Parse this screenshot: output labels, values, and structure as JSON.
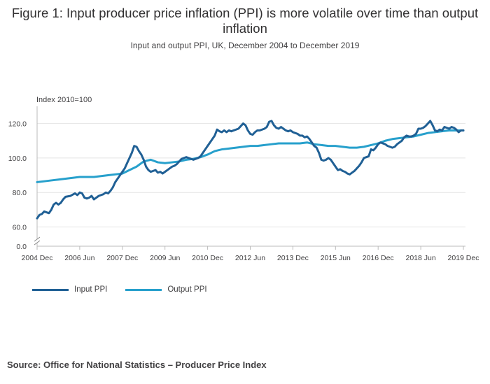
{
  "page": {
    "title": "Figure 1: Input producer price inflation (PPI) is more volatile over time than output inflation",
    "subtitle": "Input and output PPI, UK, December 2004 to December 2019",
    "source": "Source: Office for National Statistics – Producer Price Index"
  },
  "chart_data": {
    "type": "line",
    "ylabel": "Index 2010=100",
    "x_tick_labels": [
      "2004 Dec",
      "2006 Jun",
      "2007 Dec",
      "2009 Jun",
      "2010 Dec",
      "2012 Jun",
      "2013 Dec",
      "2015 Jun",
      "2016 Dec",
      "2018 Jun",
      "2019 Dec"
    ],
    "y_tick_labels": [
      "0.0",
      "60.0",
      "80.0",
      "100.0",
      "120.0"
    ],
    "y_axis_break": true,
    "ylim": [
      0,
      130
    ],
    "grid": true,
    "legend_position": "bottom-left",
    "series": [
      {
        "name": "Input PPI",
        "color": "#206095",
        "points": [
          [
            "2004-12",
            65
          ],
          [
            "2005-01",
            67
          ],
          [
            "2005-02",
            67.5
          ],
          [
            "2005-03",
            69
          ],
          [
            "2005-04",
            68.5
          ],
          [
            "2005-05",
            68
          ],
          [
            "2005-06",
            70
          ],
          [
            "2005-07",
            73
          ],
          [
            "2005-08",
            74
          ],
          [
            "2005-09",
            73
          ],
          [
            "2005-10",
            74
          ],
          [
            "2005-11",
            76
          ],
          [
            "2005-12",
            77.5
          ],
          [
            "2006-02",
            78
          ],
          [
            "2006-04",
            79.5
          ],
          [
            "2006-05",
            78.5
          ],
          [
            "2006-06",
            80
          ],
          [
            "2006-07",
            79.5
          ],
          [
            "2006-08",
            77
          ],
          [
            "2006-09",
            76.5
          ],
          [
            "2006-10",
            77
          ],
          [
            "2006-11",
            78
          ],
          [
            "2006-12",
            76
          ],
          [
            "2007-01",
            77
          ],
          [
            "2007-02",
            78
          ],
          [
            "2007-03",
            78.5
          ],
          [
            "2007-04",
            79
          ],
          [
            "2007-05",
            80
          ],
          [
            "2007-06",
            79.5
          ],
          [
            "2007-07",
            81
          ],
          [
            "2007-08",
            83
          ],
          [
            "2007-09",
            86
          ],
          [
            "2007-10",
            88
          ],
          [
            "2007-11",
            90
          ],
          [
            "2007-12",
            92
          ],
          [
            "2008-01",
            94
          ],
          [
            "2008-02",
            97
          ],
          [
            "2008-03",
            100
          ],
          [
            "2008-04",
            103
          ],
          [
            "2008-05",
            107
          ],
          [
            "2008-06",
            106.5
          ],
          [
            "2008-07",
            104
          ],
          [
            "2008-08",
            102
          ],
          [
            "2008-09",
            99
          ],
          [
            "2008-10",
            95
          ],
          [
            "2008-11",
            93
          ],
          [
            "2008-12",
            92
          ],
          [
            "2009-01",
            92.5
          ],
          [
            "2009-02",
            93
          ],
          [
            "2009-03",
            91.5
          ],
          [
            "2009-04",
            92
          ],
          [
            "2009-05",
            91
          ],
          [
            "2009-06",
            92
          ],
          [
            "2009-07",
            93
          ],
          [
            "2009-08",
            94
          ],
          [
            "2009-09",
            95
          ],
          [
            "2009-10",
            95.5
          ],
          [
            "2009-11",
            96.5
          ],
          [
            "2009-12",
            98
          ],
          [
            "2010-01",
            99.5
          ],
          [
            "2010-02",
            100
          ],
          [
            "2010-03",
            100.5
          ],
          [
            "2010-04",
            100
          ],
          [
            "2010-05",
            99.5
          ],
          [
            "2010-06",
            99
          ],
          [
            "2010-07",
            99.5
          ],
          [
            "2010-08",
            100
          ],
          [
            "2010-09",
            101
          ],
          [
            "2010-10",
            103
          ],
          [
            "2010-11",
            105
          ],
          [
            "2010-12",
            107
          ],
          [
            "2011-01",
            109
          ],
          [
            "2011-02",
            111
          ],
          [
            "2011-03",
            113
          ],
          [
            "2011-04",
            116.5
          ],
          [
            "2011-05",
            115.5
          ],
          [
            "2011-06",
            115
          ],
          [
            "2011-07",
            116
          ],
          [
            "2011-08",
            115
          ],
          [
            "2011-09",
            116
          ],
          [
            "2011-10",
            115.5
          ],
          [
            "2011-11",
            116
          ],
          [
            "2011-12",
            116.5
          ],
          [
            "2012-01",
            117
          ],
          [
            "2012-02",
            118.5
          ],
          [
            "2012-03",
            120
          ],
          [
            "2012-04",
            119
          ],
          [
            "2012-05",
            116
          ],
          [
            "2012-06",
            114
          ],
          [
            "2012-07",
            113.5
          ],
          [
            "2012-08",
            115
          ],
          [
            "2012-09",
            116
          ],
          [
            "2012-10",
            116
          ],
          [
            "2012-11",
            116.5
          ],
          [
            "2012-12",
            117
          ],
          [
            "2013-01",
            118
          ],
          [
            "2013-02",
            121
          ],
          [
            "2013-03",
            121.5
          ],
          [
            "2013-04",
            119
          ],
          [
            "2013-05",
            117.5
          ],
          [
            "2013-06",
            117
          ],
          [
            "2013-07",
            118
          ],
          [
            "2013-08",
            117
          ],
          [
            "2013-09",
            116
          ],
          [
            "2013-10",
            115.5
          ],
          [
            "2013-11",
            116
          ],
          [
            "2013-12",
            115
          ],
          [
            "2014-01",
            114.5
          ],
          [
            "2014-02",
            114
          ],
          [
            "2014-03",
            113
          ],
          [
            "2014-04",
            113
          ],
          [
            "2014-05",
            112
          ],
          [
            "2014-06",
            112.5
          ],
          [
            "2014-07",
            111
          ],
          [
            "2014-08",
            109
          ],
          [
            "2014-09",
            107
          ],
          [
            "2014-10",
            106
          ],
          [
            "2014-11",
            103
          ],
          [
            "2014-12",
            99
          ],
          [
            "2015-01",
            98.5
          ],
          [
            "2015-02",
            99
          ],
          [
            "2015-03",
            100
          ],
          [
            "2015-04",
            99
          ],
          [
            "2015-05",
            97
          ],
          [
            "2015-06",
            95
          ],
          [
            "2015-07",
            93
          ],
          [
            "2015-08",
            93.5
          ],
          [
            "2015-09",
            92.5
          ],
          [
            "2015-10",
            92
          ],
          [
            "2015-11",
            91
          ],
          [
            "2015-12",
            90.5
          ],
          [
            "2016-01",
            91.5
          ],
          [
            "2016-02",
            92.5
          ],
          [
            "2016-03",
            94
          ],
          [
            "2016-04",
            95.5
          ],
          [
            "2016-05",
            97.5
          ],
          [
            "2016-06",
            100
          ],
          [
            "2016-07",
            100.5
          ],
          [
            "2016-08",
            101
          ],
          [
            "2016-09",
            105
          ],
          [
            "2016-10",
            104.5
          ],
          [
            "2016-11",
            106
          ],
          [
            "2016-12",
            108
          ],
          [
            "2017-01",
            109
          ],
          [
            "2017-02",
            108.5
          ],
          [
            "2017-03",
            108
          ],
          [
            "2017-04",
            107
          ],
          [
            "2017-05",
            106.5
          ],
          [
            "2017-06",
            106
          ],
          [
            "2017-07",
            106.5
          ],
          [
            "2017-08",
            108
          ],
          [
            "2017-09",
            109
          ],
          [
            "2017-10",
            110
          ],
          [
            "2017-11",
            112
          ],
          [
            "2017-12",
            113
          ],
          [
            "2018-01",
            112.5
          ],
          [
            "2018-02",
            112.5
          ],
          [
            "2018-03",
            113
          ],
          [
            "2018-04",
            114
          ],
          [
            "2018-05",
            117
          ],
          [
            "2018-06",
            117
          ],
          [
            "2018-07",
            117.5
          ],
          [
            "2018-08",
            118.5
          ],
          [
            "2018-09",
            120
          ],
          [
            "2018-10",
            121.5
          ],
          [
            "2018-11",
            119
          ],
          [
            "2018-12",
            116
          ],
          [
            "2019-01",
            115.5
          ],
          [
            "2019-02",
            116.5
          ],
          [
            "2019-03",
            116
          ],
          [
            "2019-04",
            118
          ],
          [
            "2019-05",
            117.5
          ],
          [
            "2019-06",
            117
          ],
          [
            "2019-07",
            118
          ],
          [
            "2019-08",
            117.5
          ],
          [
            "2019-09",
            116.5
          ],
          [
            "2019-10",
            115
          ],
          [
            "2019-11",
            116
          ],
          [
            "2019-12",
            116
          ]
        ]
      },
      {
        "name": "Output PPI",
        "color": "#27a0cc",
        "points": [
          [
            "2004-12",
            86
          ],
          [
            "2005-03",
            86.5
          ],
          [
            "2005-06",
            87
          ],
          [
            "2005-09",
            87.5
          ],
          [
            "2005-12",
            88
          ],
          [
            "2006-03",
            88.5
          ],
          [
            "2006-06",
            89
          ],
          [
            "2006-09",
            89
          ],
          [
            "2006-12",
            89
          ],
          [
            "2007-03",
            89.5
          ],
          [
            "2007-06",
            90
          ],
          [
            "2007-09",
            90.5
          ],
          [
            "2007-12",
            91
          ],
          [
            "2008-03",
            93
          ],
          [
            "2008-06",
            95
          ],
          [
            "2008-09",
            98
          ],
          [
            "2008-12",
            99
          ],
          [
            "2009-03",
            97.5
          ],
          [
            "2009-06",
            97
          ],
          [
            "2009-09",
            97.5
          ],
          [
            "2009-12",
            98
          ],
          [
            "2010-03",
            99
          ],
          [
            "2010-06",
            99.5
          ],
          [
            "2010-09",
            100.5
          ],
          [
            "2010-12",
            102
          ],
          [
            "2011-03",
            104
          ],
          [
            "2011-06",
            105
          ],
          [
            "2011-09",
            105.5
          ],
          [
            "2011-12",
            106
          ],
          [
            "2012-03",
            106.5
          ],
          [
            "2012-06",
            107
          ],
          [
            "2012-09",
            107
          ],
          [
            "2012-12",
            107.5
          ],
          [
            "2013-03",
            108
          ],
          [
            "2013-06",
            108.5
          ],
          [
            "2013-09",
            108.5
          ],
          [
            "2013-12",
            108.5
          ],
          [
            "2014-03",
            108.5
          ],
          [
            "2014-06",
            109
          ],
          [
            "2014-09",
            108
          ],
          [
            "2014-12",
            107.5
          ],
          [
            "2015-03",
            107
          ],
          [
            "2015-06",
            107
          ],
          [
            "2015-09",
            106.5
          ],
          [
            "2015-12",
            106
          ],
          [
            "2016-03",
            106
          ],
          [
            "2016-06",
            106.5
          ],
          [
            "2016-09",
            107.5
          ],
          [
            "2016-12",
            108.5
          ],
          [
            "2017-03",
            110
          ],
          [
            "2017-06",
            111
          ],
          [
            "2017-09",
            111.5
          ],
          [
            "2017-12",
            112
          ],
          [
            "2018-03",
            112.5
          ],
          [
            "2018-06",
            113.5
          ],
          [
            "2018-09",
            114.5
          ],
          [
            "2018-12",
            115
          ],
          [
            "2019-03",
            115.5
          ],
          [
            "2019-06",
            116
          ],
          [
            "2019-09",
            116
          ],
          [
            "2019-12",
            116
          ]
        ]
      }
    ]
  }
}
